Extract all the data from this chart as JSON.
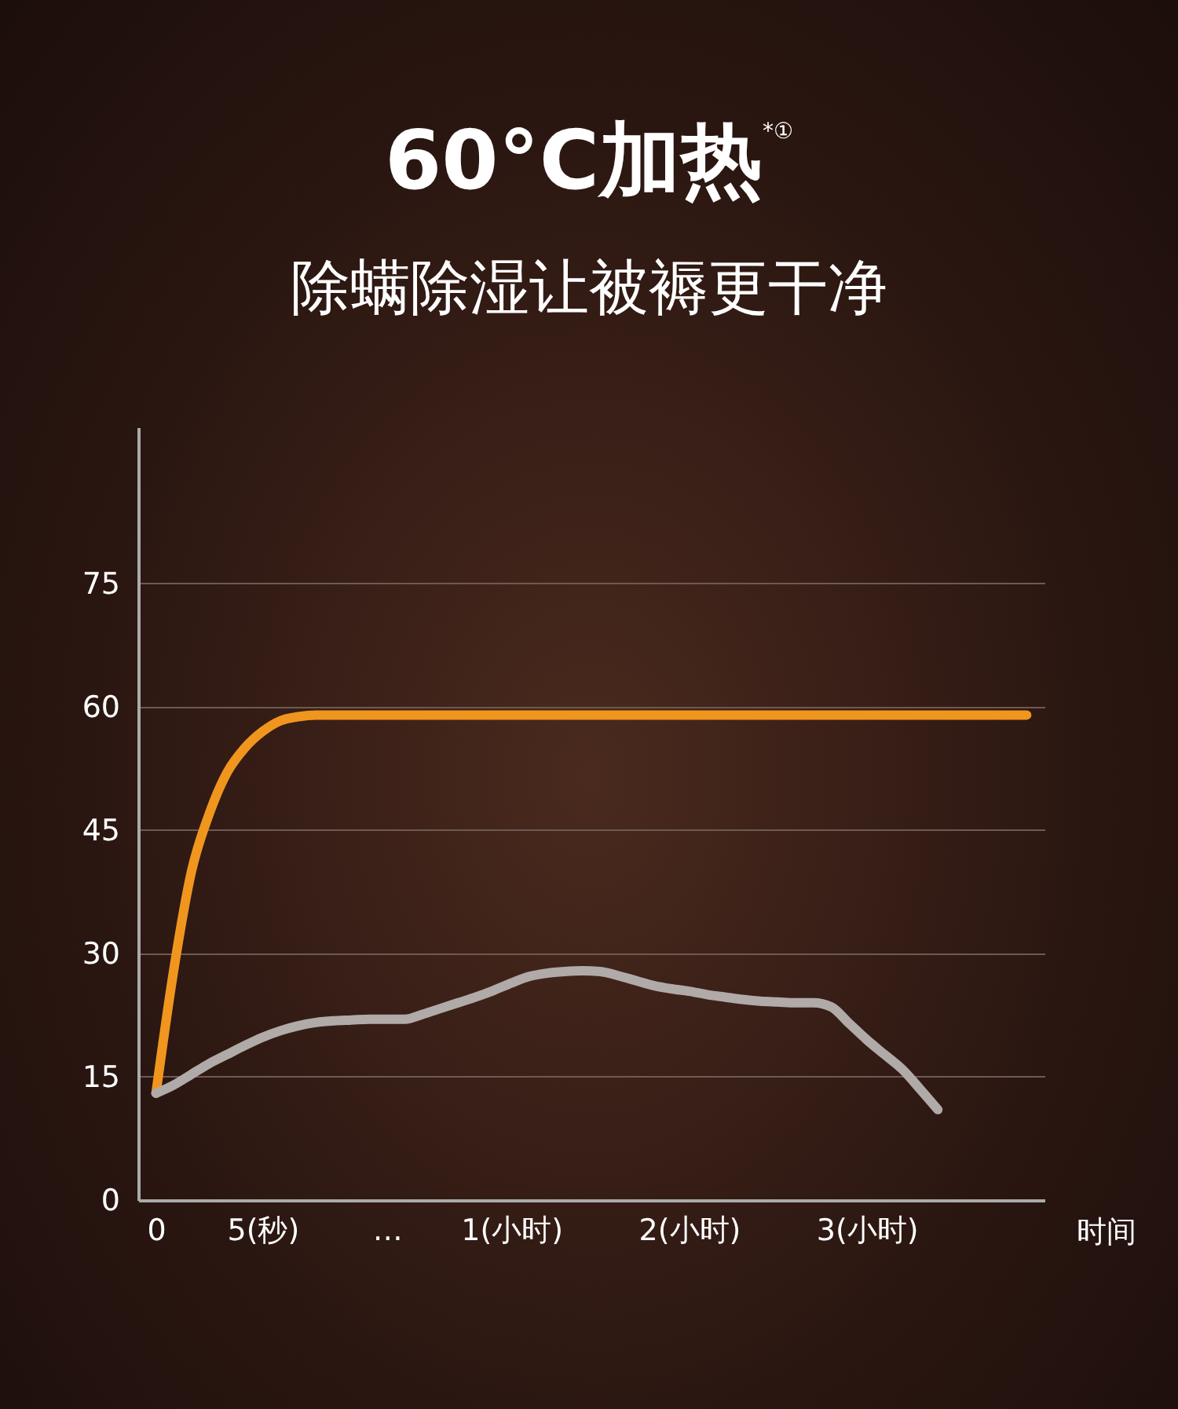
{
  "chart_data": {
    "type": "line",
    "title": "60°C加热$^{*①}$",
    "subtitle": "除螨除湿让被褥更干净",
    "xlabel": "时间",
    "categories": [
      "0",
      null,
      null,
      null,
      null,
      null,
      "5(秒)",
      null,
      null,
      null,
      null,
      null,
      null,
      "…",
      null,
      null,
      null,
      null,
      null,
      null,
      "1(小时)",
      null,
      null,
      null,
      null,
      null,
      null,
      null,
      null,
      null,
      "2(小时)",
      null,
      null,
      null,
      null,
      null,
      null,
      null,
      null,
      null,
      "3(小时)",
      null,
      null,
      null,
      null,
      null,
      null,
      null,
      null,
      null
    ],
    "ylim": [
      0,
      94
    ],
    "yticks": [
      0,
      15,
      30,
      45,
      60,
      75
    ],
    "grid": "y",
    "marker": "none",
    "line_style": "solid",
    "series": [
      {
        "color": "#f0961e",
        "values": [
          13,
          28,
          40,
          47,
          52,
          55,
          57,
          58.3,
          58.8,
          59,
          59,
          59,
          59,
          59,
          59,
          59,
          59,
          59,
          59,
          59,
          59,
          59,
          59,
          59,
          59,
          59,
          59,
          59,
          59,
          59,
          59,
          59,
          59,
          59,
          59,
          59,
          59,
          59,
          59,
          59,
          59,
          59,
          59,
          59,
          59,
          59,
          59,
          59,
          59,
          59
        ]
      },
      {
        "color": "#b0aaa8",
        "values": [
          13,
          14,
          15.3,
          16.6,
          17.7,
          18.8,
          19.8,
          20.6,
          21.2,
          21.6,
          21.8,
          21.9,
          22,
          22,
          22,
          22.6,
          23.3,
          24,
          24.7,
          25.5,
          26.4,
          27.2,
          27.6,
          27.8,
          27.9,
          27.8,
          27.3,
          26.7,
          26.1,
          25.7,
          25.4,
          25,
          24.7,
          24.4,
          24.2,
          24.1,
          24,
          24,
          23.5,
          21.5,
          19.5,
          17.7,
          15.9,
          13.5,
          11,
          null,
          null,
          null,
          null,
          null
        ]
      }
    ]
  }
}
